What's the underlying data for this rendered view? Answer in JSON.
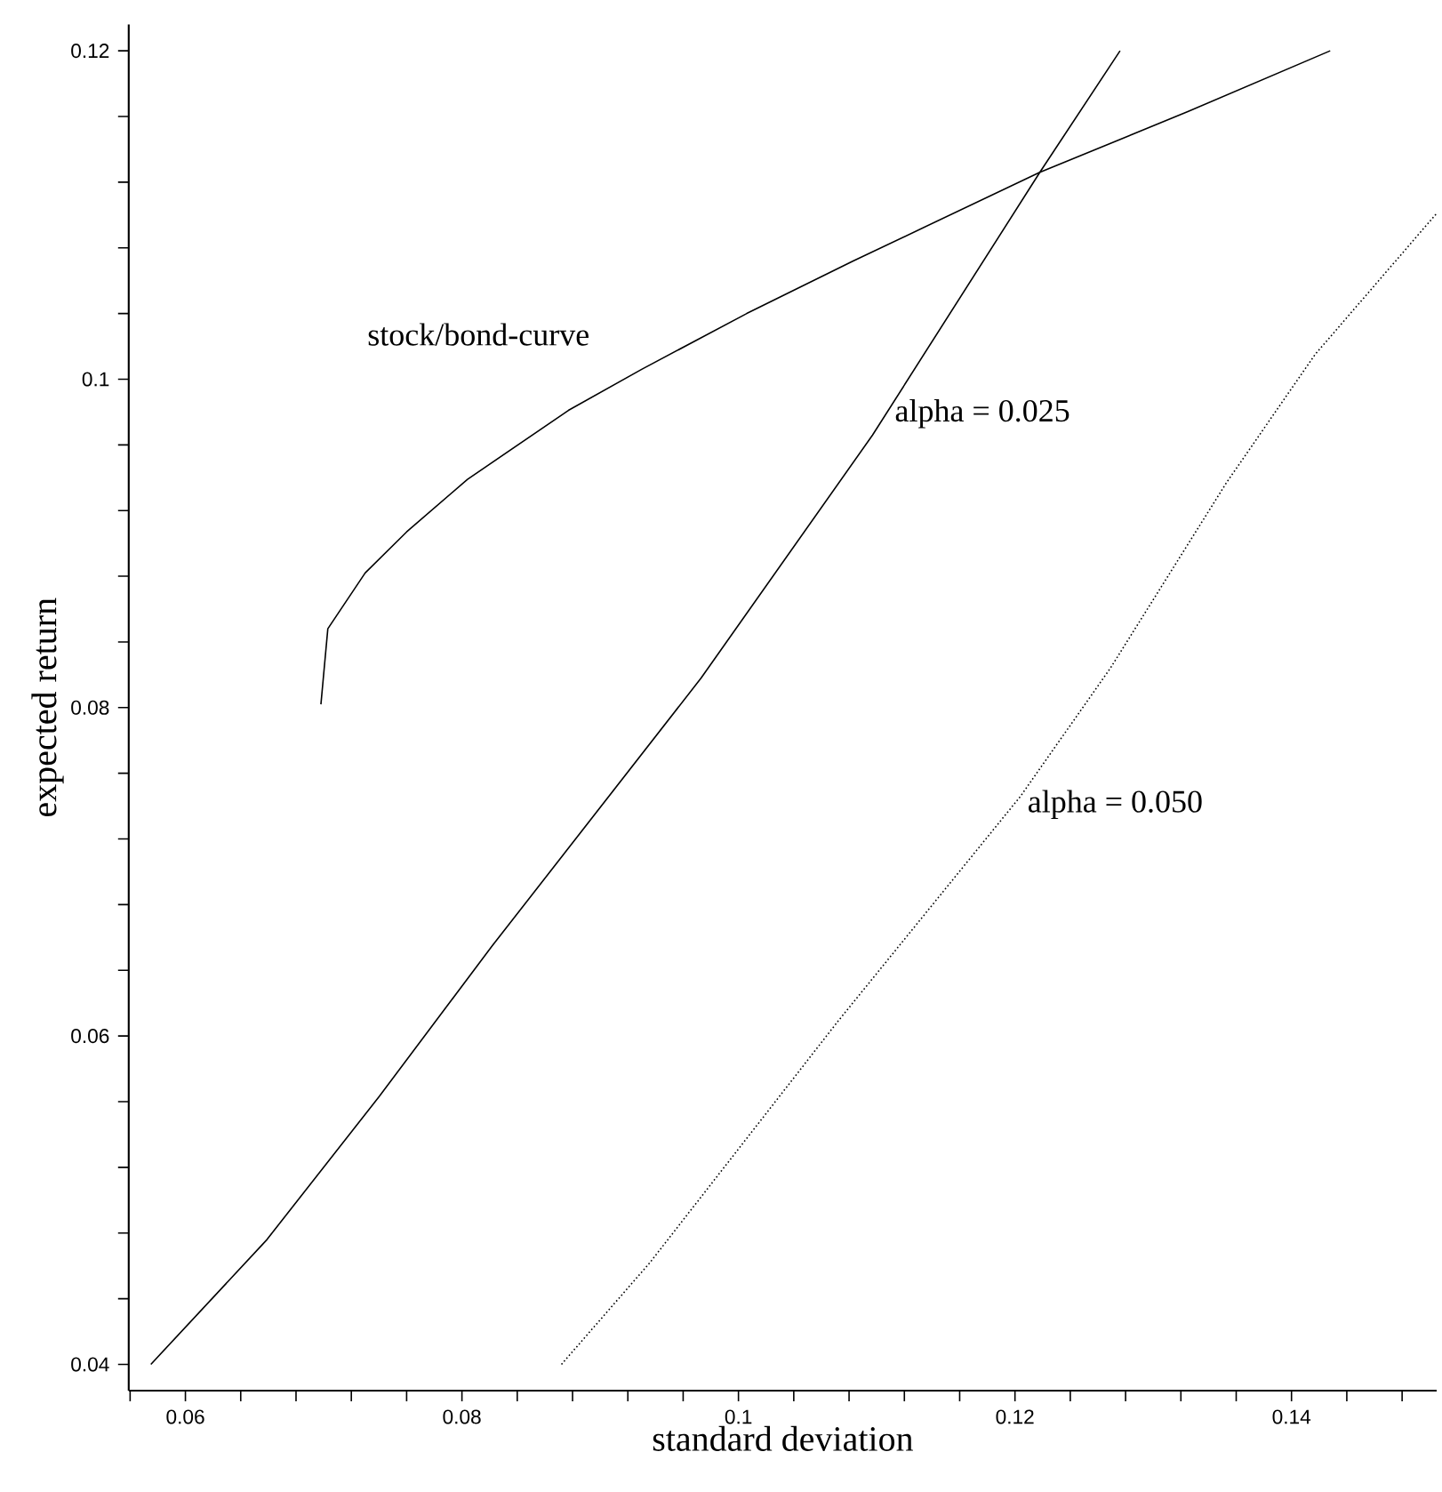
{
  "chart_data": {
    "type": "line",
    "xlabel": "standard deviation",
    "ylabel": "expected return",
    "xlim": [
      0.0559,
      0.1505
    ],
    "ylim": [
      0.0384,
      0.1216
    ],
    "xticks": [
      {
        "value": 0.056,
        "label": null
      },
      0.06,
      {
        "value": 0.064,
        "label": null
      },
      {
        "value": 0.068,
        "label": null
      },
      {
        "value": 0.072,
        "label": null
      },
      {
        "value": 0.076,
        "label": null
      },
      0.08,
      {
        "value": 0.084,
        "label": null
      },
      {
        "value": 0.088,
        "label": null
      },
      {
        "value": 0.092,
        "label": null
      },
      {
        "value": 0.096,
        "label": null
      },
      0.1,
      {
        "value": 0.104,
        "label": null
      },
      {
        "value": 0.108,
        "label": null
      },
      {
        "value": 0.112,
        "label": null
      },
      {
        "value": 0.116,
        "label": null
      },
      0.12,
      {
        "value": 0.124,
        "label": null
      },
      {
        "value": 0.128,
        "label": null
      },
      {
        "value": 0.132,
        "label": null
      },
      {
        "value": 0.136,
        "label": null
      },
      0.14,
      {
        "value": 0.144,
        "label": null
      },
      {
        "value": 0.148,
        "label": null
      }
    ],
    "yticks": [
      0.04,
      {
        "value": 0.044,
        "label": null
      },
      {
        "value": 0.048,
        "label": null
      },
      {
        "value": 0.052,
        "label": null
      },
      {
        "value": 0.056,
        "label": null
      },
      0.06,
      {
        "value": 0.064,
        "label": null
      },
      {
        "value": 0.068,
        "label": null
      },
      {
        "value": 0.072,
        "label": null
      },
      {
        "value": 0.076,
        "label": null
      },
      0.08,
      {
        "value": 0.084,
        "label": null
      },
      {
        "value": 0.088,
        "label": null
      },
      {
        "value": 0.092,
        "label": null
      },
      {
        "value": 0.096,
        "label": null
      },
      0.1,
      {
        "value": 0.104,
        "label": null
      },
      {
        "value": 0.108,
        "label": null
      },
      {
        "value": 0.112,
        "label": null
      },
      {
        "value": 0.116,
        "label": null
      },
      0.12
    ],
    "marker": "none",
    "series": [
      {
        "color": "#000000",
        "line_style": "solid",
        "x": [
          0.0698,
          0.0703,
          0.073,
          0.076,
          0.0804,
          0.0877,
          0.093,
          0.1006,
          0.1083,
          0.1218,
          0.1325,
          0.1428
        ],
        "values": [
          0.0802,
          0.0848,
          0.0882,
          0.0907,
          0.0939,
          0.0981,
          0.1006,
          0.104,
          0.1072,
          0.1126,
          0.1163,
          0.12
        ]
      },
      {
        "color": "#000000",
        "line_style": "solid",
        "x": [
          0.0575,
          0.0659,
          0.074,
          0.0822,
          0.0973,
          0.1097,
          0.1218,
          0.1276
        ],
        "values": [
          0.04,
          0.0476,
          0.0563,
          0.0655,
          0.0818,
          0.0966,
          0.1126,
          0.12
        ]
      },
      {
        "color": "#000000",
        "line_style": "dotted",
        "x": [
          0.0872,
          0.0936,
          0.1072,
          0.1204,
          0.1269,
          0.1353,
          0.1417,
          0.1505
        ],
        "values": [
          0.04,
          0.0462,
          0.0609,
          0.0746,
          0.0824,
          0.0937,
          0.1015,
          0.1101
        ]
      }
    ],
    "annotations": [
      "stock/bond-curve",
      {
        "text": "alpha = 0.025",
        "x": 0.1111,
        "y": 0.0979
      },
      {
        "text": "alpha = 0.050",
        "x": 0.1207,
        "y": 0.0741
      }
    ]
  }
}
